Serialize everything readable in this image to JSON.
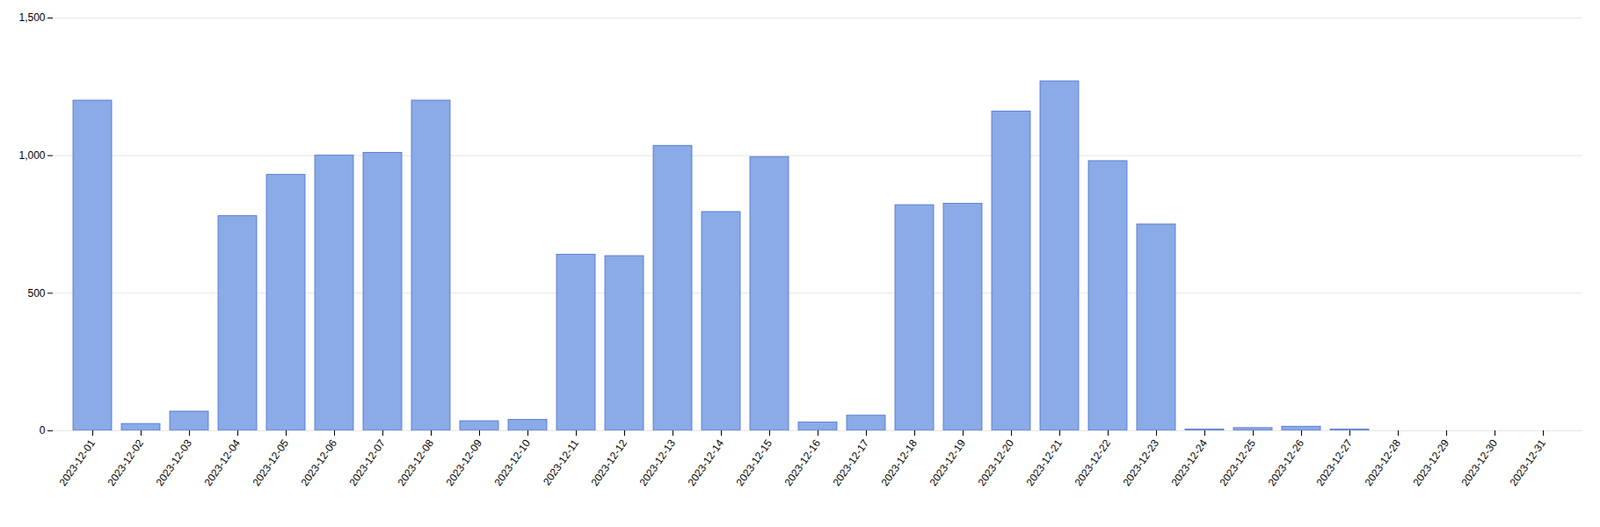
{
  "chart_data": {
    "type": "bar",
    "categories": [
      "2023-12-01",
      "2023-12-02",
      "2023-12-03",
      "2023-12-04",
      "2023-12-05",
      "2023-12-06",
      "2023-12-07",
      "2023-12-08",
      "2023-12-09",
      "2023-12-10",
      "2023-12-11",
      "2023-12-12",
      "2023-12-13",
      "2023-12-14",
      "2023-12-15",
      "2023-12-16",
      "2023-12-17",
      "2023-12-18",
      "2023-12-19",
      "2023-12-20",
      "2023-12-21",
      "2023-12-22",
      "2023-12-23",
      "2023-12-24",
      "2023-12-25",
      "2023-12-26",
      "2023-12-27",
      "2023-12-28",
      "2023-12-29",
      "2023-12-30",
      "2023-12-31"
    ],
    "values": [
      1200,
      25,
      70,
      780,
      930,
      1000,
      1010,
      1200,
      35,
      40,
      640,
      635,
      1035,
      795,
      995,
      30,
      55,
      820,
      825,
      1160,
      1270,
      980,
      750,
      5,
      10,
      15,
      5,
      0,
      0,
      0,
      0
    ],
    "color": "#8aaae8",
    "ylim": [
      0,
      1500
    ],
    "yticks": [
      0,
      500,
      1000,
      1500
    ],
    "grid": true
  }
}
